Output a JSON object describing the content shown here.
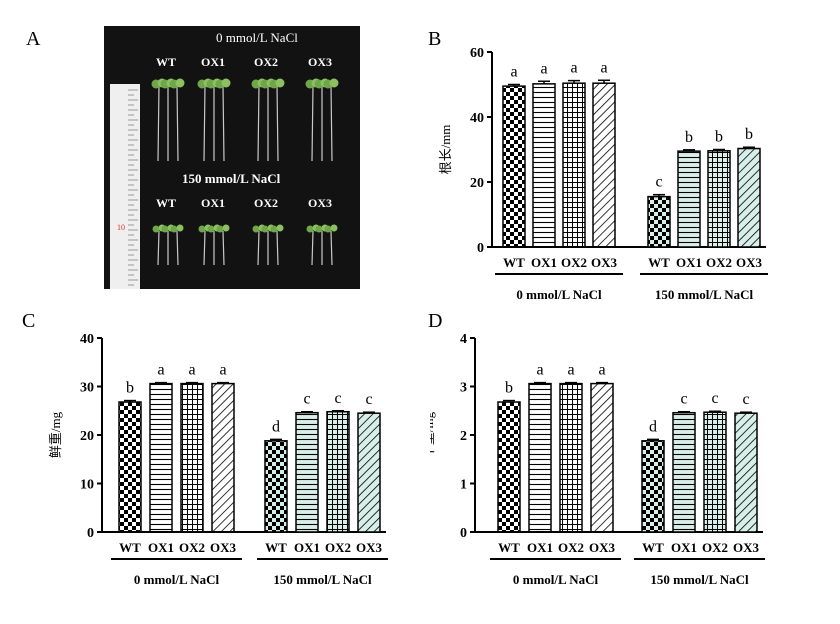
{
  "panel_labels": {
    "a": "A",
    "b": "B",
    "c": "C",
    "d": "D"
  },
  "photo": {
    "condition_top": "0 mmol/L  NaCl",
    "condition_bottom": "150 mmol/L NaCl",
    "lines": [
      "WT",
      "OX1",
      "OX2",
      "OX3"
    ]
  },
  "colors": {
    "accent_fill": "#d8efe9",
    "bar_fill": "#ffffff",
    "ink": "#000000"
  },
  "chart_data": [
    {
      "type": "bar",
      "panel": "B",
      "ylabel": "根长/mm",
      "ylim": [
        0,
        60
      ],
      "yticks": [
        0,
        20,
        40,
        60
      ],
      "groups": [
        "0 mmol/L NaCl",
        "150 mmol/L NaCl"
      ],
      "categories": [
        "WT",
        "OX1",
        "OX2",
        "OX3"
      ],
      "series": [
        {
          "values": [
            49.5,
            50.2,
            50.4,
            50.4
          ],
          "errors": [
            0.5,
            0.8,
            0.8,
            0.9
          ],
          "letters": [
            "a",
            "a",
            "a",
            "a"
          ]
        },
        {
          "values": [
            15.5,
            29.5,
            29.6,
            30.3
          ],
          "errors": [
            0.6,
            0.4,
            0.4,
            0.4
          ],
          "letters": [
            "c",
            "b",
            "b",
            "b"
          ]
        }
      ]
    },
    {
      "type": "bar",
      "panel": "C",
      "ylabel": "鲜重/mg",
      "ylim": [
        0,
        40
      ],
      "yticks": [
        0,
        10,
        20,
        30,
        40
      ],
      "groups": [
        "0 mmol/L NaCl",
        "150 mmol/L NaCl"
      ],
      "categories": [
        "WT",
        "OX1",
        "OX2",
        "OX3"
      ],
      "series": [
        {
          "values": [
            26.8,
            30.6,
            30.6,
            30.6
          ],
          "errors": [
            0.3,
            0.2,
            0.2,
            0.2
          ],
          "letters": [
            "b",
            "a",
            "a",
            "a"
          ]
        },
        {
          "values": [
            18.8,
            24.6,
            24.8,
            24.5
          ],
          "errors": [
            0.3,
            0.2,
            0.2,
            0.2
          ],
          "letters": [
            "d",
            "c",
            "c",
            "c"
          ]
        }
      ]
    },
    {
      "type": "bar",
      "panel": "D",
      "ylabel": "干重/mg",
      "ylim": [
        0,
        4
      ],
      "yticks": [
        0,
        1,
        2,
        3,
        4
      ],
      "groups": [
        "0 mmol/L NaCl",
        "150 mmol/L NaCl"
      ],
      "categories": [
        "WT",
        "OX1",
        "OX2",
        "OX3"
      ],
      "series": [
        {
          "values": [
            2.68,
            3.06,
            3.06,
            3.06
          ],
          "errors": [
            0.03,
            0.02,
            0.02,
            0.02
          ],
          "letters": [
            "b",
            "a",
            "a",
            "a"
          ]
        },
        {
          "values": [
            1.88,
            2.46,
            2.47,
            2.45
          ],
          "errors": [
            0.03,
            0.02,
            0.02,
            0.02
          ],
          "letters": [
            "d",
            "c",
            "c",
            "c"
          ]
        }
      ]
    }
  ]
}
